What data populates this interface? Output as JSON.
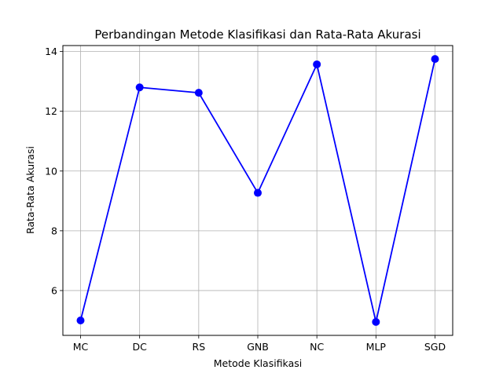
{
  "chart_data": {
    "type": "line",
    "title": "Perbandingan Metode Klasifikasi dan Rata-Rata Akurasi",
    "xlabel": "Metode Klasifikasi",
    "ylabel": "Rata-Rata Akurasi",
    "categories": [
      "MC",
      "DC",
      "RS",
      "GNB",
      "NC",
      "MLP",
      "SGD"
    ],
    "values": [
      5.0,
      12.8,
      12.62,
      9.27,
      13.57,
      4.95,
      13.75
    ],
    "yticks": [
      6,
      8,
      10,
      12,
      14
    ],
    "ylim": [
      4.5,
      14.2
    ],
    "grid": true,
    "line_color": "#0000ff",
    "marker": "circle"
  }
}
